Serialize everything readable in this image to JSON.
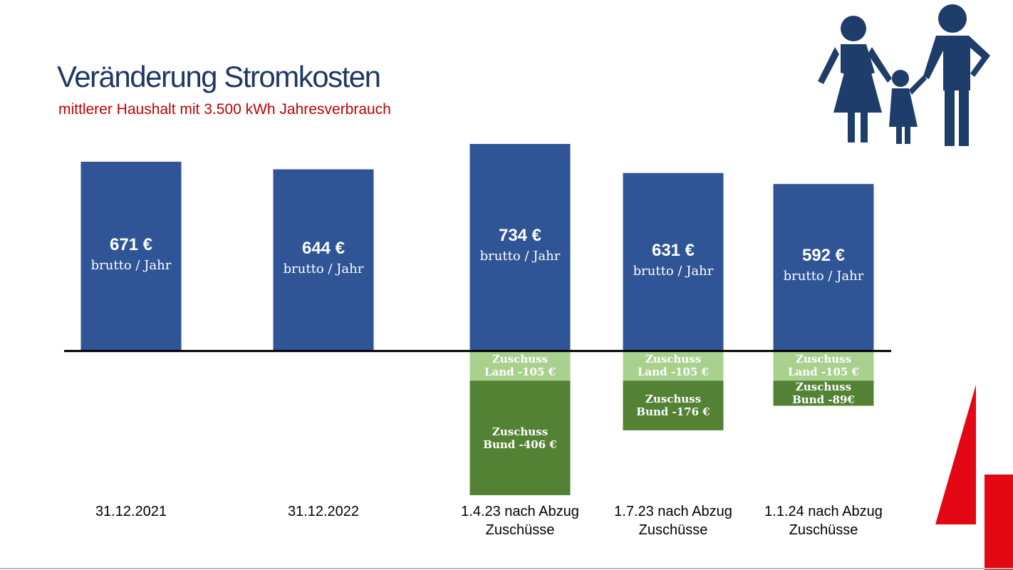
{
  "chart_data": {
    "type": "stacked_bar",
    "title": "Veränderung Stromkosten",
    "subtitle": "mittlerer Haushalt mit 3.500 kWh Jahresverbrauch",
    "categories": [
      "31.12.2021",
      "31.12.2022",
      "1.4.23 nach Abzug Zuschüsse",
      "1.7.23 nach Abzug Zuschüsse",
      "1.1.24 nach Abzug Zuschüsse"
    ],
    "series": [
      {
        "name": "brutto / Jahr",
        "color": "#2f5597",
        "values": [
          671,
          644,
          734,
          631,
          592
        ],
        "value_labels": [
          "671 €",
          "644 €",
          "734 €",
          "631 €",
          "592 €"
        ]
      },
      {
        "name": "Zuschuss Land",
        "color": "#a9d18e",
        "values": [
          null,
          null,
          -105,
          -105,
          -105
        ],
        "value_labels": [
          null,
          null,
          "Zuschuss Land -105 €",
          "Zuschuss Land -105 €",
          "Zuschuss Land -105 €"
        ]
      },
      {
        "name": "Zuschuss Bund",
        "color": "#548235",
        "values": [
          null,
          null,
          -406,
          -176,
          -89
        ],
        "value_labels": [
          null,
          null,
          "Zuschuss Bund -406 €",
          "Zuschuss Bund -176 €",
          "Zuschuss Bund -89€"
        ]
      }
    ]
  }
}
